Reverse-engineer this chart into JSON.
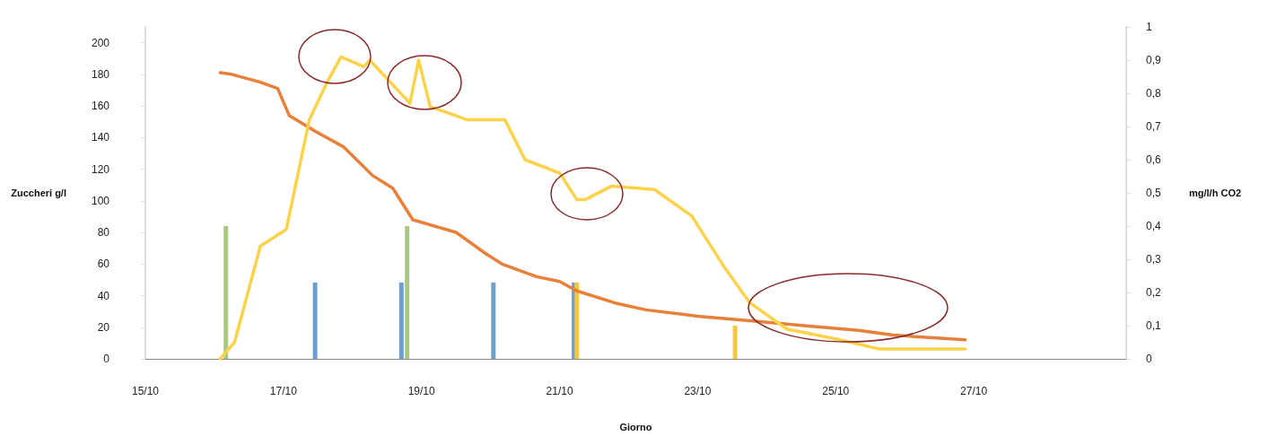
{
  "chart_data": {
    "type": "line",
    "xlabel": "Giorno",
    "ylabel": "Zuccheri g/l",
    "y2label": "mg/l/h CO2",
    "xlim": [
      "--10-15",
      "--10-29T05:00"
    ],
    "xticks": [
      {
        "value": "--10-15",
        "label": "15/10"
      },
      {
        "value": "--10-17",
        "label": "17/10"
      },
      {
        "value": "--10-19",
        "label": "19/10"
      },
      {
        "value": "--10-21",
        "label": "21/10"
      },
      {
        "value": "--10-23",
        "label": "23/10"
      },
      {
        "value": "--10-25",
        "label": "25/10"
      },
      {
        "value": "--10-27",
        "label": "27/10"
      }
    ],
    "ylim": [
      0,
      210
    ],
    "yticks": [
      0,
      20,
      40,
      60,
      80,
      100,
      120,
      140,
      160,
      180,
      200
    ],
    "y2lim": [
      0,
      1
    ],
    "y2ticks": [
      0,
      {
        "value": 0.1,
        "label": "0,1"
      },
      {
        "value": 0.2,
        "label": "0,2"
      },
      {
        "value": 0.3,
        "label": "0,3"
      },
      {
        "value": 0.4,
        "label": "0,4"
      },
      {
        "value": 0.5,
        "label": "0,5"
      },
      {
        "value": 0.6,
        "label": "0,6"
      },
      {
        "value": 0.7,
        "label": "0,7"
      },
      {
        "value": 0.8,
        "label": "0,8"
      },
      {
        "value": 0.9,
        "label": "0,9"
      },
      1
    ],
    "grid": false,
    "marker": "none",
    "line_style": "solid",
    "series": [
      {
        "type": "bar",
        "axis": "y2",
        "color": "#a8c97f",
        "x": [
          "--10-16T04:00",
          "--10-18T19:00"
        ],
        "values": [
          0.4,
          0.4
        ]
      },
      {
        "type": "bar",
        "axis": "y2",
        "color": "#6a9fd0",
        "x": [
          "--10-17T11:00",
          "--10-18T17:00",
          "--10-20T01:00",
          "--10-21T05:00"
        ],
        "values": [
          0.23,
          0.23,
          0.23,
          0.23
        ]
      },
      {
        "type": "bar",
        "axis": "y2",
        "color": "#f2c744",
        "x": [
          "--10-21T06:00",
          "--10-23T13:00"
        ],
        "values": [
          0.23,
          0.1
        ]
      },
      {
        "color": "#e8803a",
        "x": [
          "--10-16T02:00",
          "--10-16T06:00",
          "--10-16T16:00",
          "--10-16T22:00",
          "--10-17T02:00",
          "--10-17T11:00",
          "--10-17T21:00",
          "--10-18T07:00",
          "--10-18T14:00",
          "--10-18T21:00",
          "--10-19T12:00",
          "--10-19T22:00",
          "--10-20T04:00",
          "--10-20T16:00",
          "--10-21T00:00",
          "--10-21T06:00",
          "--10-21T20:00",
          "--10-22T06:00",
          "--10-23T00:00",
          "--10-23T19:00",
          "--10-24T13:00",
          "--10-25T08:00",
          "--10-25T20:00",
          "--10-26T21:00"
        ],
        "values": [
          181,
          180,
          175,
          171,
          154,
          144,
          134,
          116,
          108,
          88,
          80,
          67,
          60,
          52,
          49,
          43,
          35,
          31,
          27,
          24,
          21,
          18,
          15,
          12
        ]
      },
      {
        "axis": "y2",
        "color": "#fcd24a",
        "x": [
          "--10-16T02:00",
          "--10-16T07:00",
          "--10-16T16:00",
          "--10-17T01:00",
          "--10-17T09:00",
          "--10-17T15:00",
          "--10-17T20:00",
          "--10-18T04:00",
          "--10-18T06:00",
          "--10-18T20:00",
          "--10-18T23:00",
          "--10-19T03:00",
          "--10-19T16:00",
          "--10-20T05:00",
          "--10-20T12:00",
          "--10-21T00:00",
          "--10-21T06:00",
          "--10-21T09:00",
          "--10-21T18:00",
          "--10-22T09:00",
          "--10-22T22:00",
          "--10-23T09:00",
          "--10-23T18:00",
          "--10-24T07:00",
          "--10-25T00:00",
          "--10-25T15:00",
          "--10-26T21:00"
        ],
        "values": [
          0.0,
          0.05,
          0.34,
          0.39,
          0.72,
          0.83,
          0.91,
          0.88,
          0.9,
          0.77,
          0.9,
          0.76,
          0.72,
          0.72,
          0.6,
          0.56,
          0.48,
          0.48,
          0.52,
          0.51,
          0.43,
          0.28,
          0.17,
          0.09,
          0.06,
          0.03,
          0.03
        ]
      }
    ]
  }
}
